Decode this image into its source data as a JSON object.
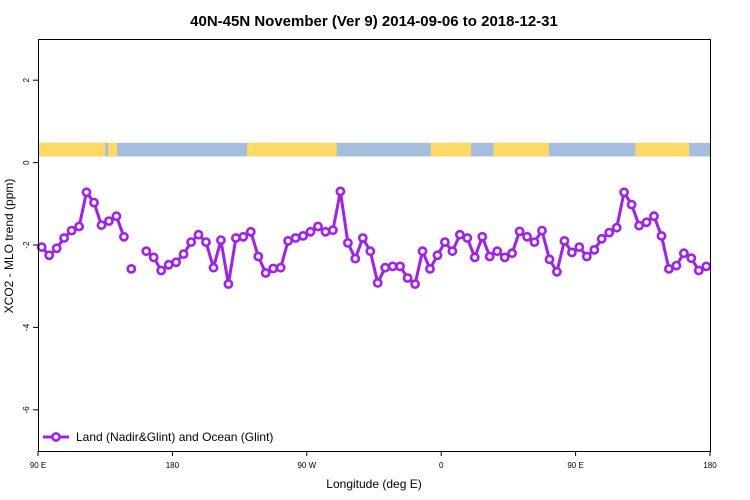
{
  "chart_data": {
    "type": "line",
    "title": "40N-45N November (Ver 9)   2014-09-06 to 2018-12-31",
    "xlabel": "Longitude (deg E)",
    "ylabel": "XCO2 - MLO trend (ppm)",
    "xlim": [
      90,
      540
    ],
    "ylim": [
      -7,
      3
    ],
    "x_ticks": [
      {
        "value": 90,
        "label": "90 E"
      },
      {
        "value": 180,
        "label": "180"
      },
      {
        "value": 270,
        "label": "90 W"
      },
      {
        "value": 360,
        "label": "0"
      },
      {
        "value": 450,
        "label": "90 E"
      },
      {
        "value": 540,
        "label": "180"
      }
    ],
    "y_ticks": [
      {
        "value": 2,
        "label": "2"
      },
      {
        "value": 0,
        "label": "0"
      },
      {
        "value": -2,
        "label": "-2"
      },
      {
        "value": -4,
        "label": "-4"
      },
      {
        "value": -6,
        "label": "-6"
      }
    ],
    "grid": false,
    "legend_position": "bottom-left",
    "land_ocean_strip": {
      "y_range": [
        0.15,
        0.48
      ],
      "land_color": "#ffd966",
      "ocean_color": "#a4bede",
      "land_spans": [
        [
          90,
          135
        ],
        [
          137,
          143
        ],
        [
          230,
          290
        ],
        [
          353,
          380
        ],
        [
          395,
          432
        ],
        [
          490,
          526
        ]
      ]
    },
    "series": [
      {
        "name": "Land (Nadir&Glint) and Ocean (Glint)",
        "color": "#a020f0",
        "segments": [
          {
            "x": [
              92.5,
              97.5,
              102.5,
              107.5,
              112.5,
              117.5,
              122.5,
              127.5,
              132.5,
              137.5,
              142.5,
              147.5
            ],
            "y": [
              -2.05,
              -2.25,
              -2.08,
              -1.83,
              -1.65,
              -1.55,
              -0.72,
              -0.97,
              -1.52,
              -1.42,
              -1.3,
              -1.8
            ]
          },
          {
            "x": [
              152.5
            ],
            "y": [
              -2.58
            ]
          },
          {
            "x": [
              162.5,
              167.5,
              172.5,
              177.5,
              182.5,
              187.5,
              192.5,
              197.5,
              202.5,
              207.5,
              212.5,
              217.5,
              222.5,
              227.5,
              232.5,
              237.5,
              242.5,
              247.5,
              252.5,
              257.5,
              262.5,
              267.5,
              272.5,
              277.5,
              282.5,
              287.5,
              292.5,
              297.5,
              302.5,
              307.5,
              312.5,
              317.5,
              322.5,
              327.5,
              332.5,
              337.5,
              342.5,
              347.5,
              352.5,
              357.5,
              362.5,
              367.5,
              372.5,
              377.5,
              382.5,
              387.5,
              392.5,
              397.5,
              402.5,
              407.5,
              412.5,
              417.5,
              422.5,
              427.5,
              432.5,
              437.5,
              442.5,
              447.5,
              452.5,
              457.5,
              462.5,
              467.5,
              472.5,
              477.5,
              482.5,
              487.5,
              492.5,
              497.5,
              502.5,
              507.5,
              512.5,
              517.5,
              522.5,
              527.5,
              532.5
            ],
            "y": [
              -2.15,
              -2.3,
              -2.62,
              -2.48,
              -2.42,
              -2.22,
              -1.93,
              -1.75,
              -1.93,
              -2.55,
              -1.88,
              -2.95,
              -1.83,
              -1.8,
              -1.68,
              -2.28,
              -2.68,
              -2.57,
              -2.55,
              -1.9,
              -1.83,
              -1.78,
              -1.68,
              -1.55,
              -1.68,
              -1.64,
              -0.7,
              -1.95,
              -2.33,
              -1.83,
              -2.15,
              -2.92,
              -2.55,
              -2.52,
              -2.52,
              -2.8,
              -2.95,
              -2.15,
              -2.58,
              -2.25,
              -1.93,
              -2.15,
              -1.75,
              -1.83,
              -2.3,
              -1.8,
              -2.28,
              -2.15,
              -2.3,
              -2.2,
              -1.67,
              -1.8,
              -1.93,
              -1.65,
              -2.35,
              -2.65,
              -1.9,
              -2.18,
              -2.05,
              -2.28,
              -2.12,
              -1.85,
              -1.7,
              -1.58,
              -0.72,
              -1.02,
              -1.53,
              -1.45,
              -1.3,
              -1.78,
              -2.58,
              -2.5,
              -2.2,
              -2.32,
              -2.62
            ]
          },
          {
            "x": [
              537.5
            ],
            "y": [
              -2.52
            ]
          }
        ]
      }
    ]
  }
}
